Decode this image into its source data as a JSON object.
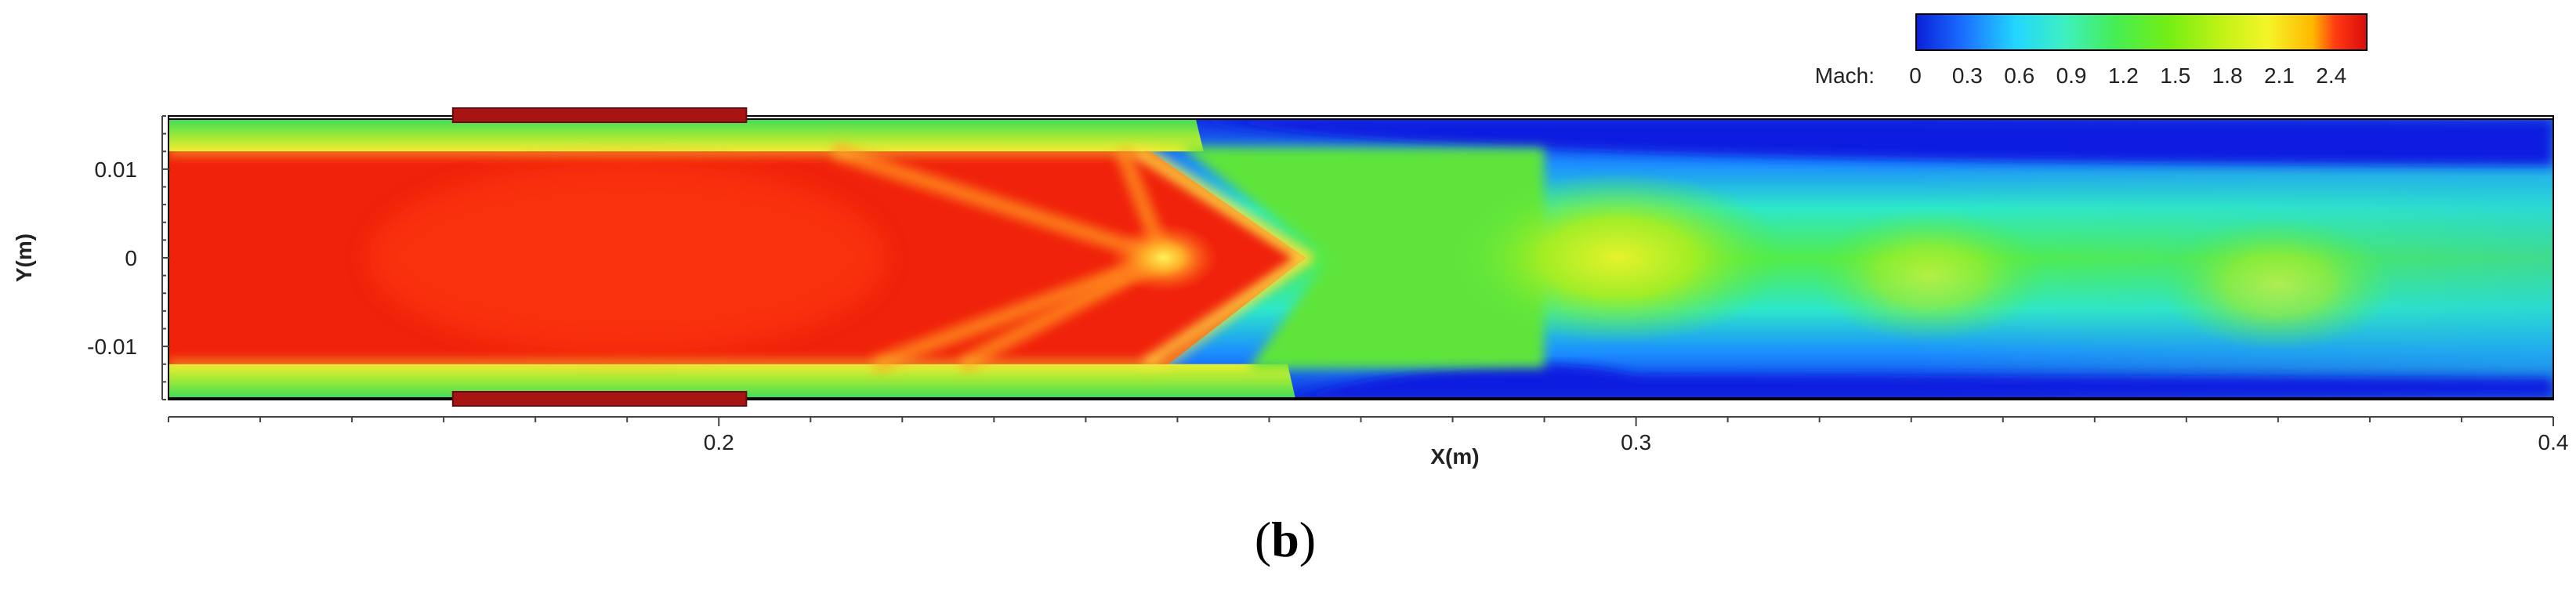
{
  "chart_data": {
    "type": "heatmap",
    "quantity": "Mach",
    "xlabel": "X(m)",
    "ylabel": "Y(m)",
    "xlim": [
      0.14,
      0.4
    ],
    "ylim": [
      -0.016,
      0.016
    ],
    "x_ticks": [
      {
        "v": 0.2,
        "label": "0.2"
      },
      {
        "v": 0.3,
        "label": "0.3"
      },
      {
        "v": 0.4,
        "label": "0.4"
      }
    ],
    "y_ticks": [
      {
        "v": 0.01,
        "label": "0.01"
      },
      {
        "v": 0,
        "label": "0"
      },
      {
        "v": -0.01,
        "label": "-0.01"
      }
    ],
    "colorbar": {
      "label": "Mach:",
      "range": [
        0,
        2.6
      ],
      "ticks": [
        {
          "v": 0,
          "label": "0"
        },
        {
          "v": 0.3,
          "label": "0.3"
        },
        {
          "v": 0.6,
          "label": "0.6"
        },
        {
          "v": 0.9,
          "label": "0.9"
        },
        {
          "v": 1.2,
          "label": "1.2"
        },
        {
          "v": 1.5,
          "label": "1.5"
        },
        {
          "v": 1.8,
          "label": "1.8"
        },
        {
          "v": 2.1,
          "label": "2.1"
        },
        {
          "v": 2.4,
          "label": "2.4"
        }
      ],
      "colors": [
        "#0a1fd8",
        "#1a6bff",
        "#22d6ff",
        "#3ef0c0",
        "#45ee55",
        "#74ee14",
        "#c2f216",
        "#f4f528",
        "#ffb700",
        "#ff3b12",
        "#d80c0c"
      ]
    },
    "features": {
      "supersonic_core": {
        "x_end": 0.264,
        "half_height": 0.012,
        "mach": 2.5
      },
      "shock_crossing": {
        "x": 0.2485,
        "y": 0,
        "mach": 2.0
      },
      "wall_layer": {
        "mach": 1.4
      },
      "separation_upper_start": 0.252,
      "separation_lower_start": 0.262,
      "downstream_cells": [
        {
          "x": 0.298,
          "y": 0,
          "mach": 1.8
        },
        {
          "x": 0.332,
          "y": -0.002,
          "mach": 1.4
        },
        {
          "x": 0.37,
          "y": -0.003,
          "mach": 1.3
        }
      ]
    },
    "walls": [
      {
        "x_start": 0.171,
        "x_end": 0.203,
        "side": "top"
      },
      {
        "x_start": 0.171,
        "x_end": 0.203,
        "side": "bottom"
      }
    ]
  },
  "caption": {
    "open": "(",
    "letter": "b",
    "close": ")"
  }
}
